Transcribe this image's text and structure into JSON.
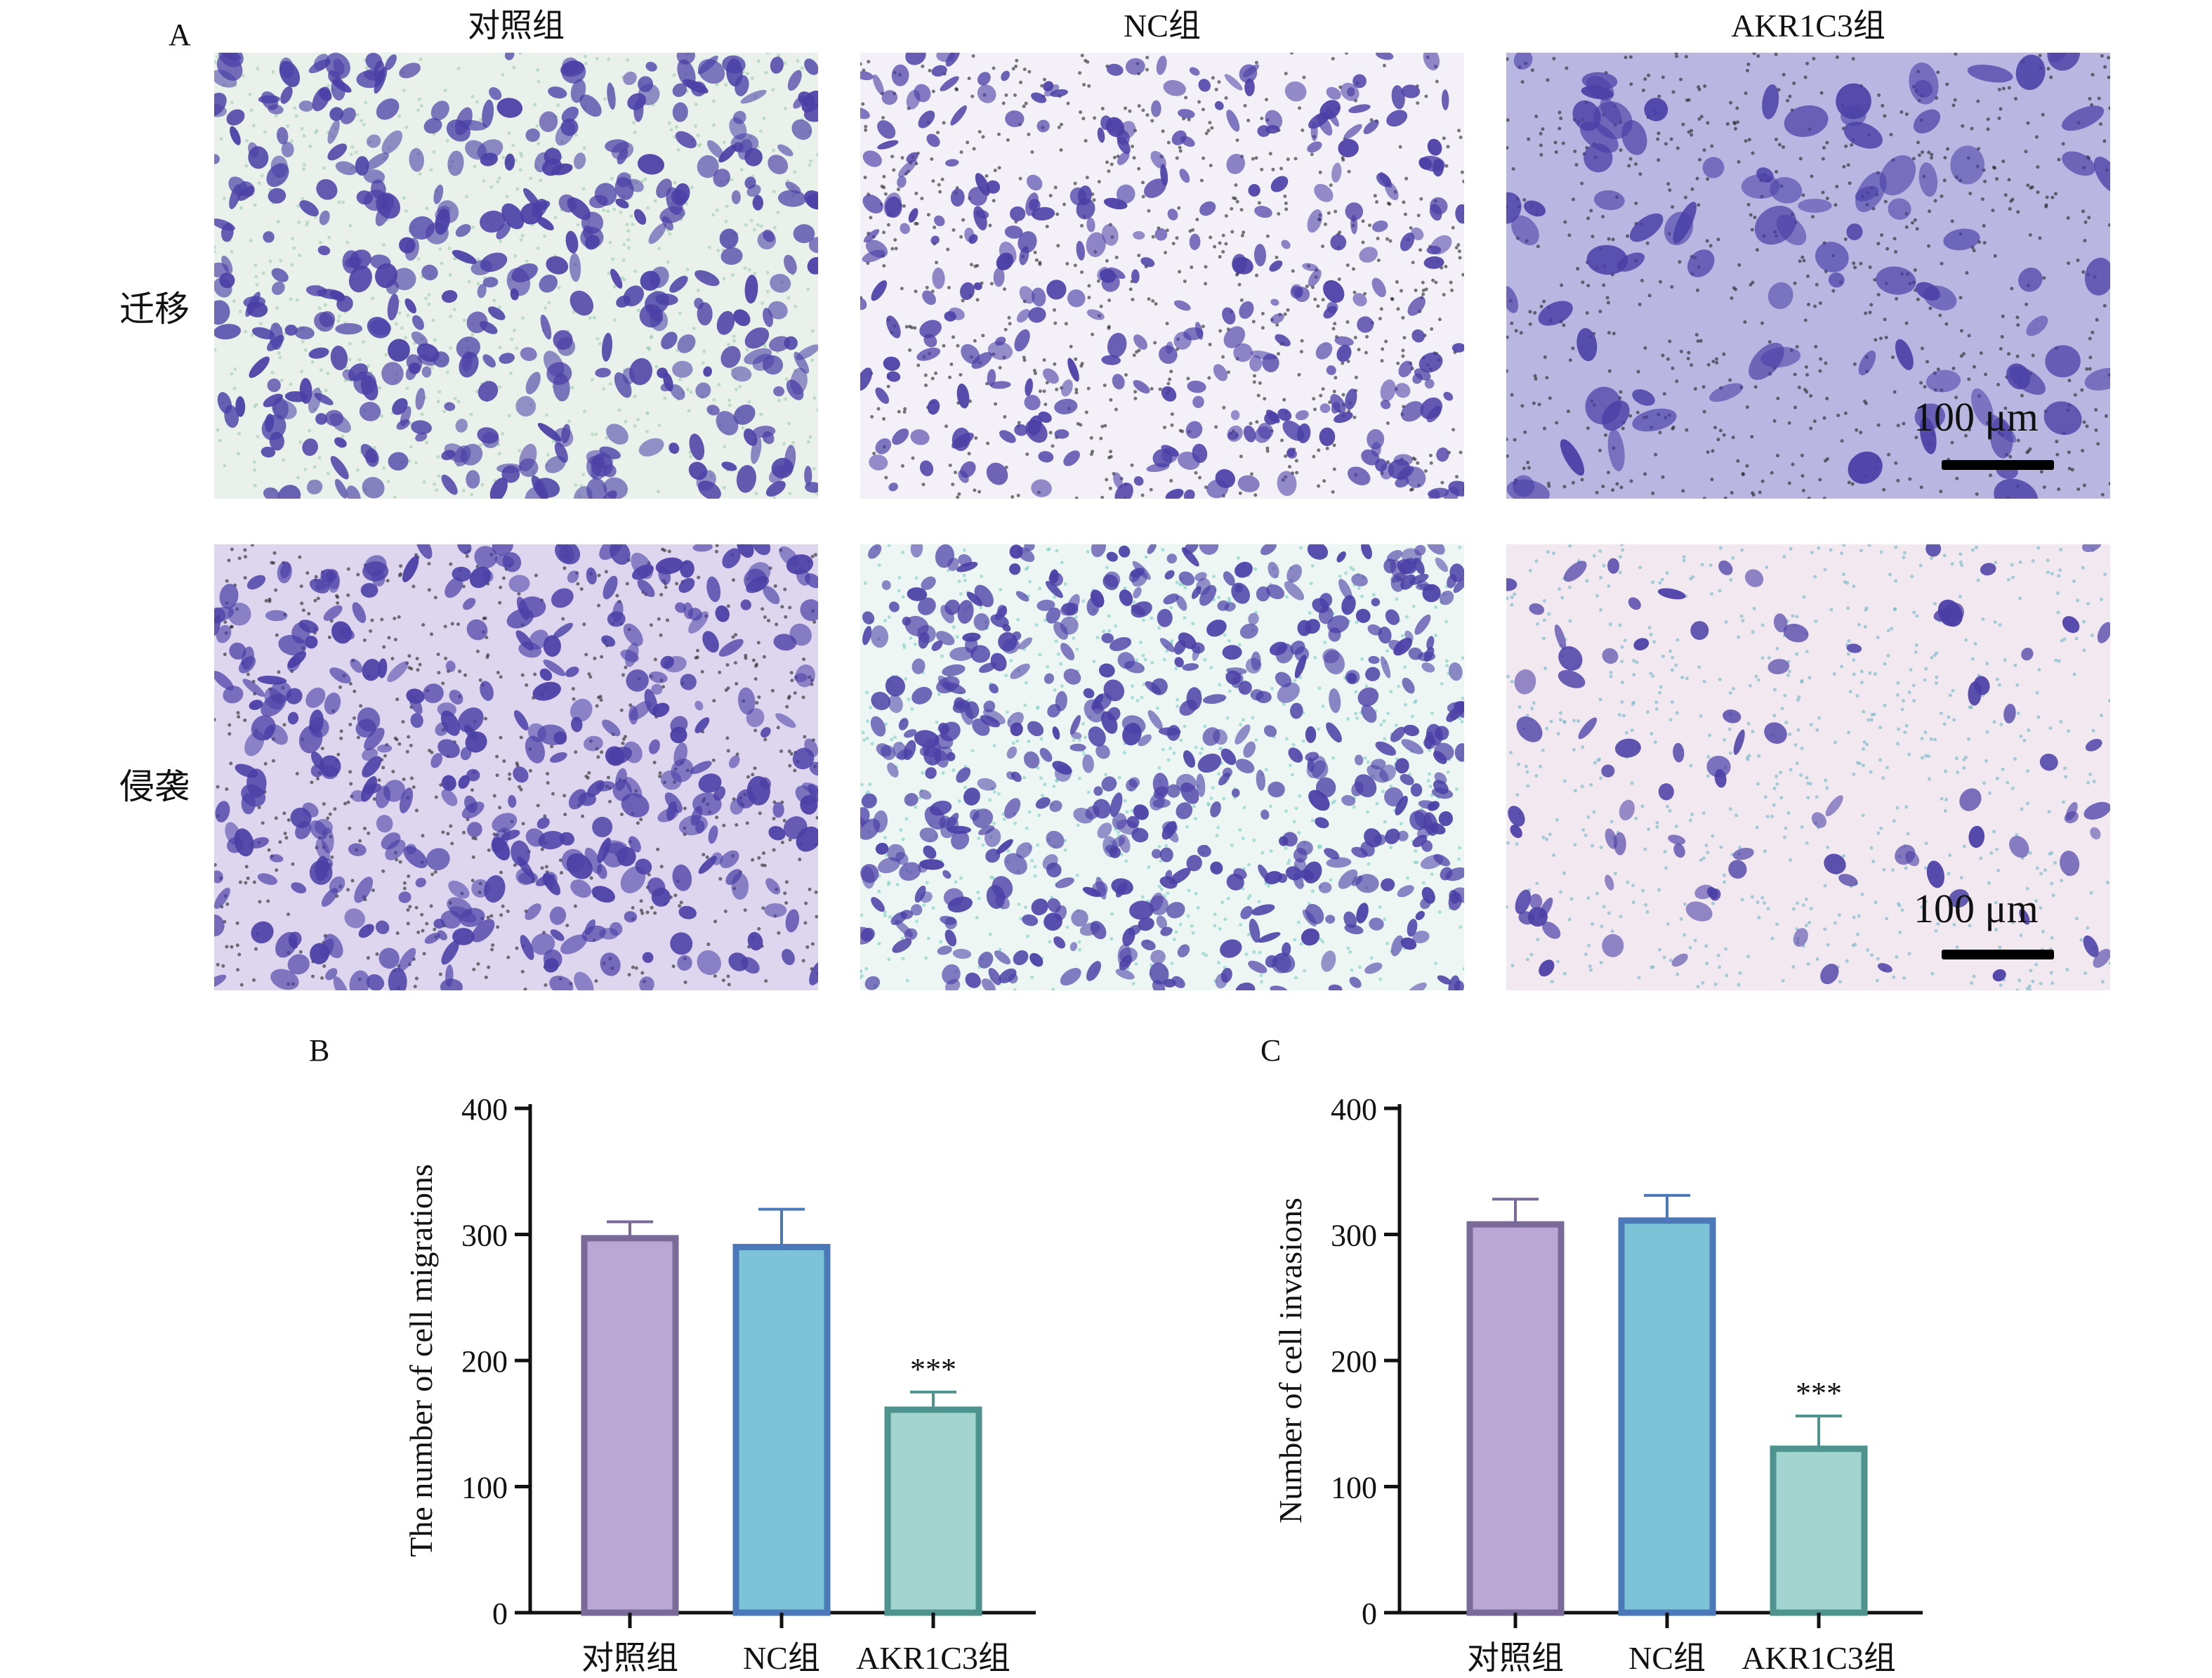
{
  "panels": {
    "A": "A",
    "B": "B",
    "C": "C"
  },
  "grid": {
    "columns": [
      "对照组",
      "NC组",
      "AKR1C3组"
    ],
    "rows": [
      "迁移",
      "侵袭"
    ],
    "scale_bar": "100 μm"
  },
  "colors": {
    "control": "#bba7d4",
    "control_edge": "#7a6a9a",
    "nc": "#7cc3d8",
    "nc_edge": "#4a78b8",
    "akr": "#a2d4d0",
    "akr_edge": "#4f938e",
    "cell_stain": "#4b3fa6"
  },
  "chart_data": [
    {
      "type": "bar",
      "panel": "B",
      "categories": [
        "对照组",
        "NC组",
        "AKR1C3组"
      ],
      "values": [
        297,
        290,
        161
      ],
      "errors": [
        13,
        30,
        14
      ],
      "annotations": [
        "",
        "",
        "***"
      ],
      "ylabel": "The number of cell migrations",
      "xlabel": "",
      "ylim": [
        0,
        400
      ],
      "yticks": [
        0,
        100,
        200,
        300,
        400
      ],
      "grid": false
    },
    {
      "type": "bar",
      "panel": "C",
      "categories": [
        "对照组",
        "NC组",
        "AKR1C3组"
      ],
      "values": [
        308,
        311,
        130
      ],
      "errors": [
        20,
        20,
        26
      ],
      "annotations": [
        "",
        "",
        "***"
      ],
      "ylabel": "Number of cell invasions",
      "xlabel": "",
      "ylim": [
        0,
        400
      ],
      "yticks": [
        0,
        100,
        200,
        300,
        400
      ],
      "grid": false
    }
  ]
}
